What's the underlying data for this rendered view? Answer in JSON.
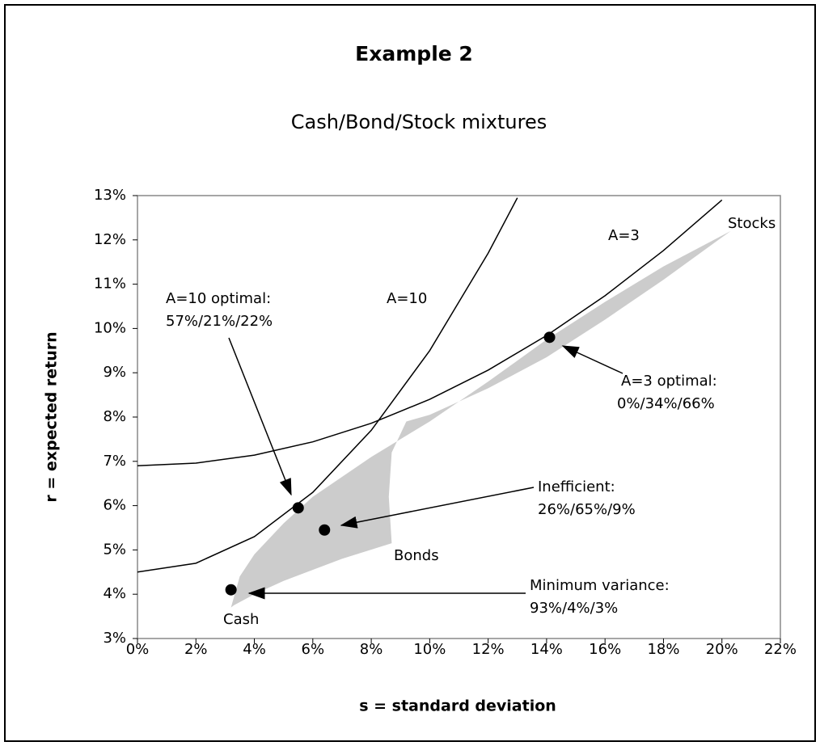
{
  "chart_data": {
    "type": "line",
    "title": "Example 2",
    "subtitle": "Cash/Bond/Stock mixtures",
    "x_label": "s = standard deviation",
    "y_label": "r = expected return",
    "xlim": [
      0,
      22
    ],
    "ylim": [
      3,
      13
    ],
    "xticks": [
      {
        "value": 0,
        "label": "0%"
      },
      {
        "value": 2,
        "label": "2%"
      },
      {
        "value": 4,
        "label": "4%"
      },
      {
        "value": 6,
        "label": "6%"
      },
      {
        "value": 8,
        "label": "8%"
      },
      {
        "value": 10,
        "label": "10%"
      },
      {
        "value": 12,
        "label": "12%"
      },
      {
        "value": 14,
        "label": "14%"
      },
      {
        "value": 16,
        "label": "16%"
      },
      {
        "value": 18,
        "label": "18%"
      },
      {
        "value": 20,
        "label": "20%"
      },
      {
        "value": 22,
        "label": "22%"
      }
    ],
    "yticks": [
      {
        "value": 3,
        "label": "3%"
      },
      {
        "value": 4,
        "label": "4%"
      },
      {
        "value": 5,
        "label": "5%"
      },
      {
        "value": 6,
        "label": "6%"
      },
      {
        "value": 7,
        "label": "7%"
      },
      {
        "value": 8,
        "label": "8%"
      },
      {
        "value": 9,
        "label": "9%"
      },
      {
        "value": 10,
        "label": "10%"
      },
      {
        "value": 11,
        "label": "11%"
      },
      {
        "value": 12,
        "label": "12%"
      },
      {
        "value": 13,
        "label": "13%"
      }
    ],
    "series": [
      {
        "name": "A=10",
        "color": "#000000",
        "x": [
          0,
          2,
          4,
          6,
          8,
          10,
          12,
          13
        ],
        "values": [
          4.5,
          4.7,
          5.3,
          6.3,
          7.7,
          9.5,
          11.7,
          12.95
        ]
      },
      {
        "name": "A=3",
        "color": "#000000",
        "x": [
          0,
          2,
          4,
          6,
          8,
          10,
          12,
          14,
          16,
          18,
          20
        ],
        "values": [
          6.9,
          6.96,
          7.14,
          7.44,
          7.86,
          8.4,
          9.06,
          9.84,
          10.74,
          11.76,
          12.9
        ]
      }
    ],
    "region": {
      "color": "#cccccc",
      "x": [
        3.2,
        3.5,
        4,
        5,
        6,
        8,
        10,
        12,
        14,
        16,
        18,
        20.3,
        18,
        16,
        14,
        12,
        10,
        9.2,
        8.7,
        8.6,
        8.7,
        7,
        5,
        4,
        3.3
      ],
      "values": [
        3.7,
        4.4,
        4.9,
        5.6,
        6.2,
        7.1,
        7.9,
        8.8,
        9.75,
        10.6,
        11.4,
        12.2,
        11.1,
        10.2,
        9.35,
        8.65,
        8.05,
        7.9,
        7.2,
        6.2,
        5.15,
        4.8,
        4.3,
        4.0,
        3.75
      ]
    },
    "points": {
      "color": "#000000",
      "x": [
        3.2,
        5.5,
        6.4,
        14.1
      ],
      "values": [
        4.1,
        5.95,
        5.45,
        9.8
      ]
    },
    "labels": [
      "Stocks",
      "Bonds",
      "Cash"
    ],
    "callouts": [
      [
        "A=10 optimal:",
        "57%/21%/22%"
      ],
      [
        "Inefficient:",
        "26%/65%/9%"
      ],
      [
        "A=3 optimal:",
        "0%/34%/66%"
      ],
      [
        "Minimum variance:",
        "93%/4%/3%"
      ]
    ]
  }
}
